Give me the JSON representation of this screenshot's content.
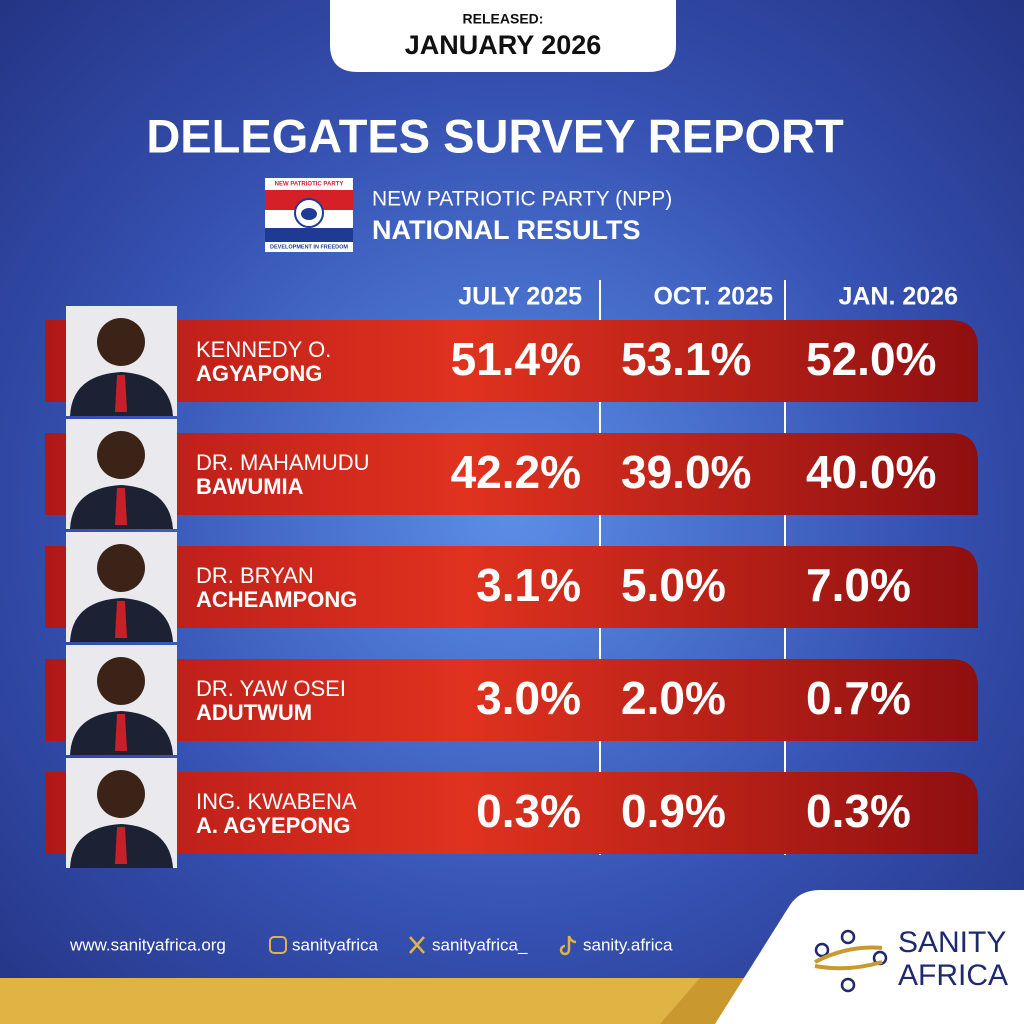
{
  "header": {
    "released_label": "RELEASED:",
    "release_date": "JANUARY 2026"
  },
  "title": "DELEGATES SURVEY REPORT",
  "logo": {
    "top_text": "NEW PATRIOTIC PARTY",
    "bottom_text": "DEVELOPMENT IN FREEDOM"
  },
  "subtitle": {
    "line1": "NEW PATRIOTIC PARTY (NPP)",
    "line2": "NATIONAL RESULTS"
  },
  "table": {
    "columns": [
      "JULY 2025",
      "OCT. 2025",
      "JAN. 2026"
    ],
    "rows": [
      {
        "name_line1": "KENNEDY O.",
        "name_line2": "AGYAPONG",
        "values": [
          "51.4%",
          "53.1%",
          "52.0%"
        ]
      },
      {
        "name_line1": "DR. MAHAMUDU",
        "name_line2": "BAWUMIA",
        "values": [
          "42.2%",
          "39.0%",
          "40.0%"
        ]
      },
      {
        "name_line1": "DR. BRYAN",
        "name_line2": "ACHEAMPONG",
        "values": [
          "3.1%",
          "5.0%",
          "7.0%"
        ]
      },
      {
        "name_line1": "DR. YAW OSEI",
        "name_line2": "ADUTWUM",
        "values": [
          "3.0%",
          "2.0%",
          "0.7%"
        ]
      },
      {
        "name_line1": "ING. KWABENA",
        "name_line2": "A. AGYEPONG",
        "values": [
          "0.3%",
          "0.9%",
          "0.3%"
        ]
      }
    ]
  },
  "footer": {
    "links": [
      "www.sanityafrica.org",
      "sanityafrica",
      "sanityafrica_",
      "sanity.africa"
    ],
    "brand_line1": "SANITY",
    "brand_line2": "AFRICA"
  }
}
